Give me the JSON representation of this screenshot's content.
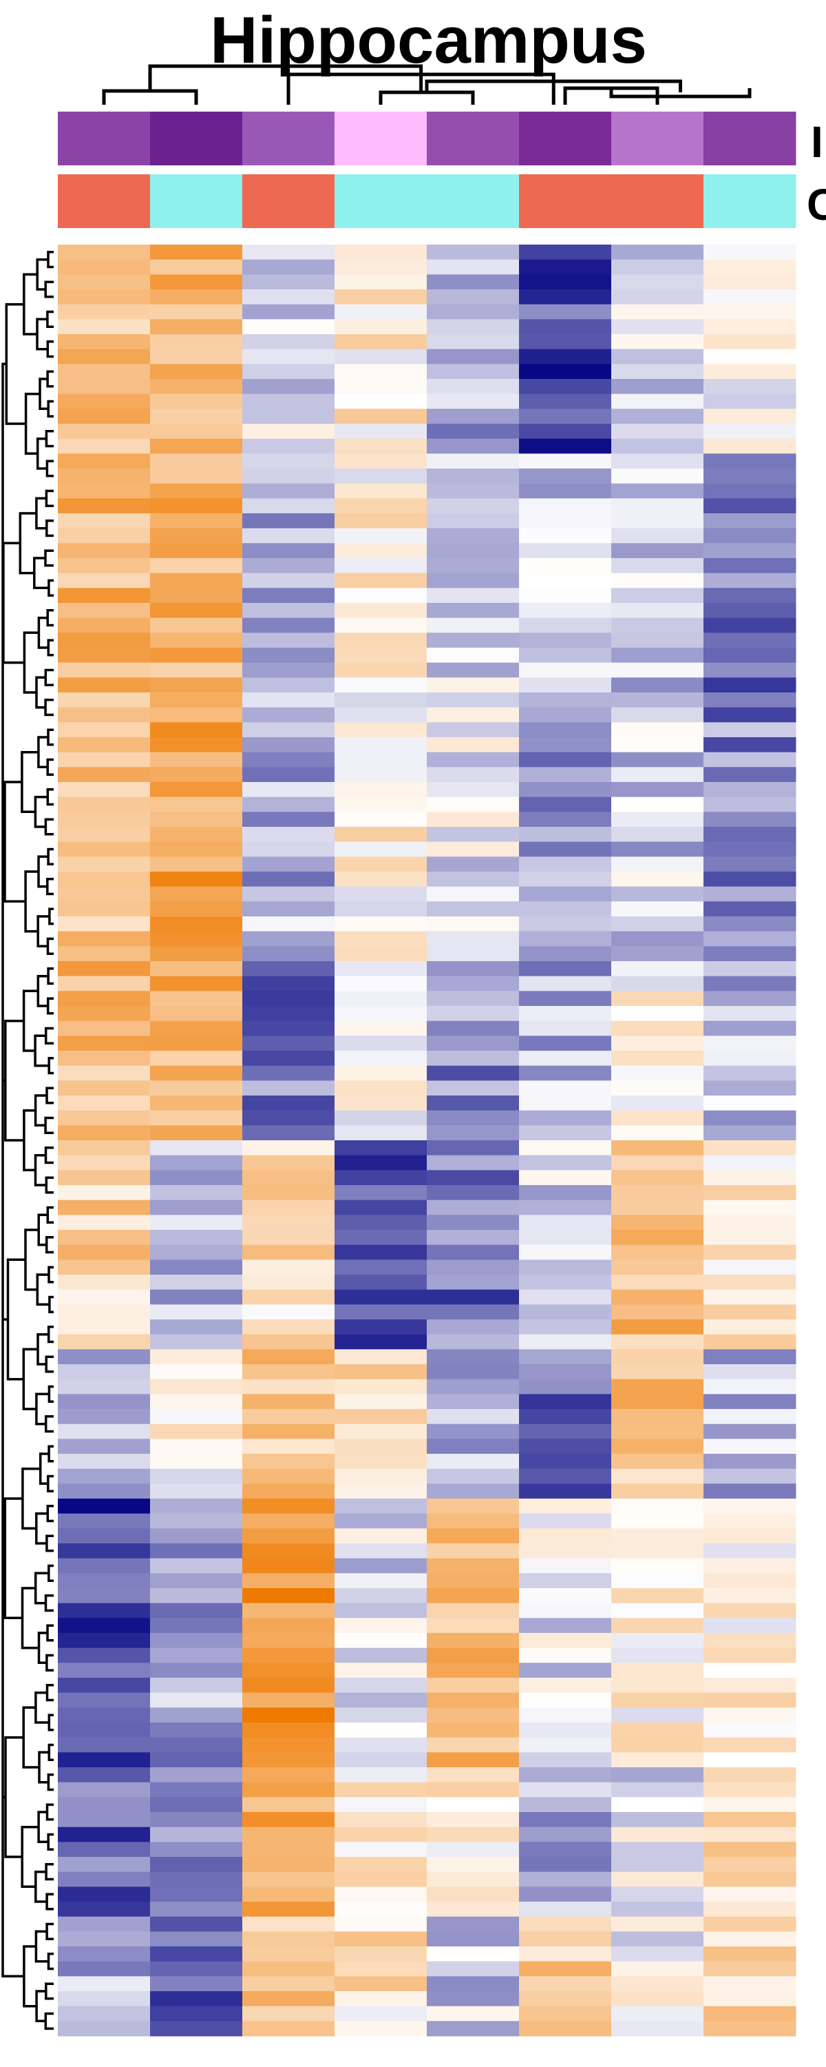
{
  "chart_data": {
    "type": "heatmap",
    "title": "Hippocampus",
    "n_columns": 8,
    "n_rows": 120,
    "cluster_rows": true,
    "cluster_columns": true,
    "annotation_rows": [
      {
        "label_partial": "I",
        "colors": [
          "#8a44a6",
          "#6b2190",
          "#9a58b6",
          "#fdbcfd",
          "#944fae",
          "#7a2b98",
          "#b774cb",
          "#8740a3"
        ]
      },
      {
        "label_partial": "C",
        "groups": [
          "A",
          "B",
          "A",
          "B",
          "B",
          "A",
          "A",
          "B"
        ],
        "group_colors": {
          "A": "#ef6851",
          "B": "#8ff0ee"
        }
      }
    ],
    "color_scale": {
      "low": "#000080",
      "mid": "#ffffff",
      "high": "#ef7a00",
      "min": -1,
      "max": 1
    },
    "column_means": [
      0.45,
      0.3,
      0.2,
      0.05,
      0.0,
      -0.1,
      0.05,
      -0.05
    ],
    "seed": 20240611
  }
}
